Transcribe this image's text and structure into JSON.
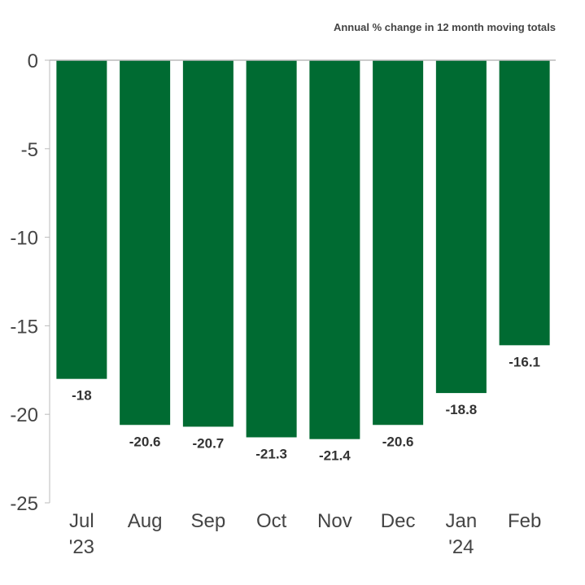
{
  "chart_data": {
    "type": "bar",
    "title": "",
    "subtitle": "Annual % change in 12 month moving totals",
    "xlabel": "",
    "ylabel": "",
    "categories": [
      "Jul '23",
      "Aug",
      "Sep",
      "Oct",
      "Nov",
      "Dec",
      "Jan '24",
      "Feb"
    ],
    "category_lines": [
      [
        "Jul",
        "'23"
      ],
      [
        "Aug"
      ],
      [
        "Sep"
      ],
      [
        "Oct"
      ],
      [
        "Nov"
      ],
      [
        "Dec"
      ],
      [
        "Jan",
        "'24"
      ],
      [
        "Feb"
      ]
    ],
    "values": [
      -18,
      -20.6,
      -20.7,
      -21.3,
      -21.4,
      -20.6,
      -18.8,
      -16.1
    ],
    "data_labels": [
      "-18",
      "-20.6",
      "-20.7",
      "-21.3",
      "-21.4",
      "-20.6",
      "-18.8",
      "-16.1"
    ],
    "ylim": [
      -25,
      0
    ],
    "yticks": [
      0,
      -5,
      -10,
      -15,
      -20,
      -25
    ],
    "ytick_labels": [
      "0",
      "-5",
      "-10",
      "-15",
      "-20",
      "-25"
    ],
    "grid": false,
    "legend": "none",
    "colors": {
      "bar": "#006B32",
      "axis": "#bbbbbb",
      "text": "#444444"
    }
  }
}
